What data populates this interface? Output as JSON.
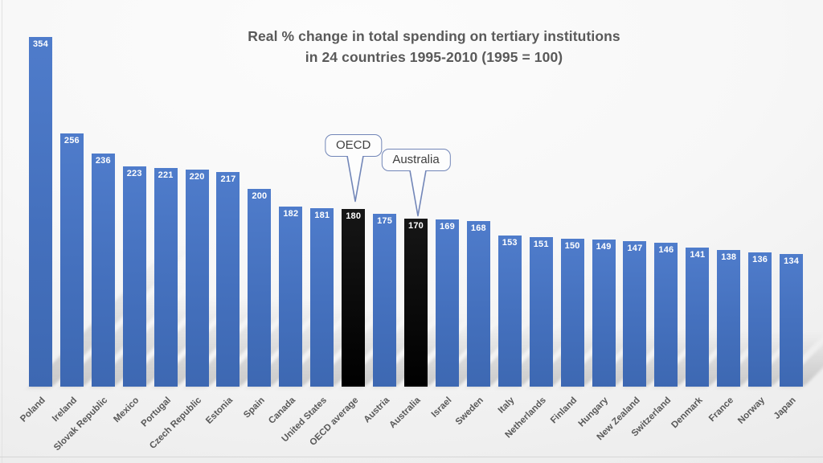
{
  "chart": {
    "title_line1": "Real % change in total spending on tertiary institutions",
    "title_line2": "in 24 countries 1995-2010 (1995 = 100)"
  },
  "chart_data": {
    "type": "bar",
    "title": "Real % change in total spending on tertiary institutions in 24 countries 1995-2010 (1995 = 100)",
    "xlabel": "",
    "ylabel": "",
    "ylim": [
      0,
      354
    ],
    "grid": false,
    "legend": false,
    "value_labels_shown": true,
    "categories": [
      "Poland",
      "Ireland",
      "Slovak Republic",
      "Mexico",
      "Portugal",
      "Czech Republic",
      "Estonia",
      "Spain",
      "Canada",
      "United States",
      "OECD average",
      "Austria",
      "Australia",
      "Israel",
      "Sweden",
      "Italy",
      "Netherlands",
      "Finland",
      "Hungary",
      "New Zealand",
      "Switzerland",
      "Denmark",
      "France",
      "Norway",
      "Japan"
    ],
    "values": [
      354,
      256,
      236,
      223,
      221,
      220,
      217,
      200,
      182,
      181,
      180,
      175,
      170,
      169,
      168,
      153,
      151,
      150,
      149,
      147,
      146,
      141,
      138,
      136,
      134
    ],
    "bar_color": "#4472c4",
    "highlight_color": "#000000",
    "value_label_color": "#ffffff",
    "axis_label_color": "#595959",
    "title_color": "#595959",
    "callout_border_color": "#7286b8",
    "highlighted_categories": [
      "OECD average",
      "Australia"
    ],
    "callouts": [
      {
        "label": "OECD",
        "target": "OECD average"
      },
      {
        "label": "Australia",
        "target": "Australia"
      }
    ]
  }
}
